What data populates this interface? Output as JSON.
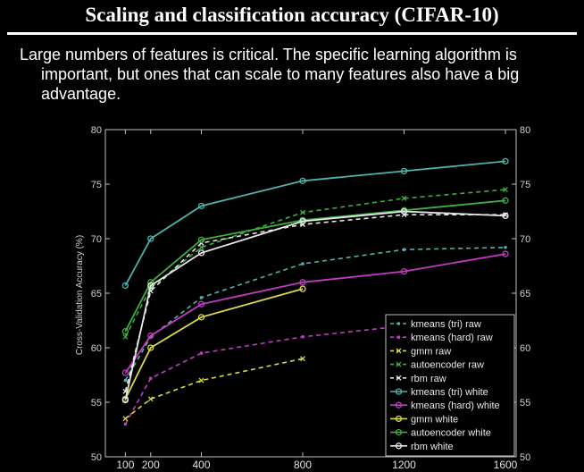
{
  "slide": {
    "title": "Scaling and classification accuracy (CIFAR-10)",
    "desc_line1": "Large numbers of features is critical. The specific learning algorithm is",
    "desc_line2": "important, but ones that can scale to many features also have a big",
    "desc_line3": "advantage."
  },
  "colors": {
    "teal": "#4fb3a9",
    "magenta": "#c03cc0",
    "yellow": "#d8d84a",
    "green": "#3fae3f",
    "white": "#e6e6e6",
    "axis": "#bfbfbf",
    "background": "#000000"
  },
  "chart_data": {
    "type": "line",
    "title": "",
    "xlabel": "",
    "ylabel": "Cross-Validation Accuracy (%)",
    "x": [
      100,
      200,
      400,
      800,
      1200,
      1600
    ],
    "xticks": [
      "100",
      "200",
      "400",
      "800",
      "1200",
      "1600"
    ],
    "ylim": [
      50,
      80
    ],
    "yticks": [
      50,
      55,
      60,
      65,
      70,
      75,
      80
    ],
    "legend_position": "bottom-right",
    "series": [
      {
        "name": "kmeans (tri) raw",
        "color": "#4fb3a9",
        "dash": true,
        "marker": "dot",
        "x": [
          100,
          200,
          400,
          800,
          1200,
          1600
        ],
        "values": [
          57.0,
          61.0,
          64.6,
          67.7,
          69.0,
          69.2
        ]
      },
      {
        "name": "kmeans (hard) raw",
        "color": "#c03cc0",
        "dash": true,
        "marker": "dot",
        "x": [
          100,
          200,
          400,
          800,
          1200,
          1600
        ],
        "values": [
          53.0,
          57.2,
          59.5,
          61.0,
          62.0,
          62.5
        ]
      },
      {
        "name": "gmm raw",
        "color": "#d8d84a",
        "dash": true,
        "marker": "x",
        "x": [
          100,
          200,
          400,
          800
        ],
        "values": [
          53.5,
          55.3,
          57.0,
          59.0
        ]
      },
      {
        "name": "autoencoder raw",
        "color": "#3fae3f",
        "dash": true,
        "marker": "x",
        "x": [
          100,
          200,
          400,
          800,
          1200,
          1600
        ],
        "values": [
          61.0,
          65.5,
          69.2,
          72.4,
          73.7,
          74.5
        ]
      },
      {
        "name": "rbm raw",
        "color": "#e6e6e6",
        "dash": true,
        "marker": "x",
        "x": [
          100,
          200,
          400,
          800,
          1200,
          1600
        ],
        "values": [
          56.0,
          65.2,
          69.6,
          71.3,
          72.2,
          72.2
        ]
      },
      {
        "name": "kmeans (tri) white",
        "color": "#4fb3a9",
        "dash": false,
        "marker": "circle",
        "x": [
          100,
          200,
          400,
          800,
          1200,
          1600
        ],
        "values": [
          65.7,
          70.0,
          73.0,
          75.3,
          76.2,
          77.1
        ]
      },
      {
        "name": "kmeans (hard) white",
        "color": "#c03cc0",
        "dash": false,
        "marker": "circle",
        "x": [
          100,
          200,
          400,
          800,
          1200,
          1600
        ],
        "values": [
          57.7,
          61.1,
          64.0,
          66.0,
          67.0,
          68.6
        ]
      },
      {
        "name": "gmm white",
        "color": "#d8d84a",
        "dash": false,
        "marker": "circle",
        "x": [
          100,
          200,
          400,
          800
        ],
        "values": [
          55.3,
          60.0,
          62.8,
          65.4
        ]
      },
      {
        "name": "autoencoder white",
        "color": "#3fae3f",
        "dash": false,
        "marker": "circle",
        "x": [
          100,
          200,
          400,
          800,
          1200,
          1600
        ],
        "values": [
          61.5,
          66.0,
          69.9,
          71.7,
          72.6,
          73.5
        ]
      },
      {
        "name": "rbm white",
        "color": "#e6e6e6",
        "dash": false,
        "marker": "circle",
        "x": [
          100,
          200,
          400,
          800,
          1200,
          1600
        ],
        "values": [
          55.2,
          65.7,
          68.7,
          71.6,
          72.5,
          72.1
        ]
      }
    ]
  }
}
